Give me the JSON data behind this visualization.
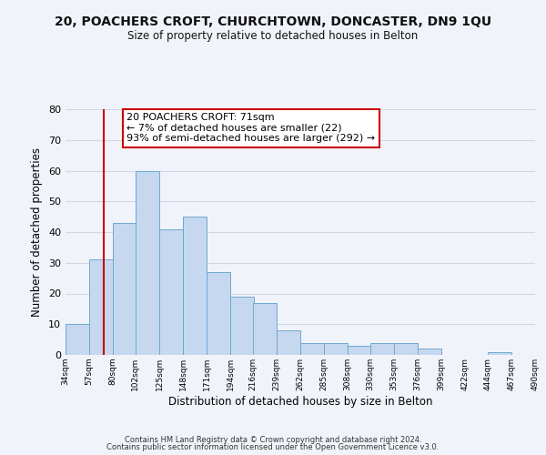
{
  "title": "20, POACHERS CROFT, CHURCHTOWN, DONCASTER, DN9 1QU",
  "subtitle": "Size of property relative to detached houses in Belton",
  "xlabel": "Distribution of detached houses by size in Belton",
  "ylabel": "Number of detached properties",
  "bar_left_edges": [
    34,
    57,
    80,
    102,
    125,
    148,
    171,
    194,
    216,
    239,
    262,
    285,
    308,
    330,
    353,
    376,
    399,
    422,
    444,
    467
  ],
  "bar_heights": [
    10,
    31,
    43,
    60,
    41,
    45,
    27,
    19,
    17,
    8,
    4,
    4,
    3,
    4,
    4,
    2,
    0,
    0,
    1,
    0
  ],
  "bin_width": 23,
  "bar_color": "#c5d8f0",
  "bar_edge_color": "#6fa8d0",
  "vline_x": 71,
  "vline_color": "#cc0000",
  "annotation_box_text": "20 POACHERS CROFT: 71sqm\n← 7% of detached houses are smaller (22)\n93% of semi-detached houses are larger (292) →",
  "annotation_facecolor": "white",
  "annotation_edgecolor": "#cc0000",
  "tick_labels": [
    "34sqm",
    "57sqm",
    "80sqm",
    "102sqm",
    "125sqm",
    "148sqm",
    "171sqm",
    "194sqm",
    "216sqm",
    "239sqm",
    "262sqm",
    "285sqm",
    "308sqm",
    "330sqm",
    "353sqm",
    "376sqm",
    "399sqm",
    "422sqm",
    "444sqm",
    "467sqm",
    "490sqm"
  ],
  "ylim": [
    0,
    80
  ],
  "yticks": [
    0,
    10,
    20,
    30,
    40,
    50,
    60,
    70,
    80
  ],
  "grid_color": "#d0d8e8",
  "background_color": "#f0f4fa",
  "footer1": "Contains HM Land Registry data © Crown copyright and database right 2024.",
  "footer2": "Contains public sector information licensed under the Open Government Licence v3.0."
}
